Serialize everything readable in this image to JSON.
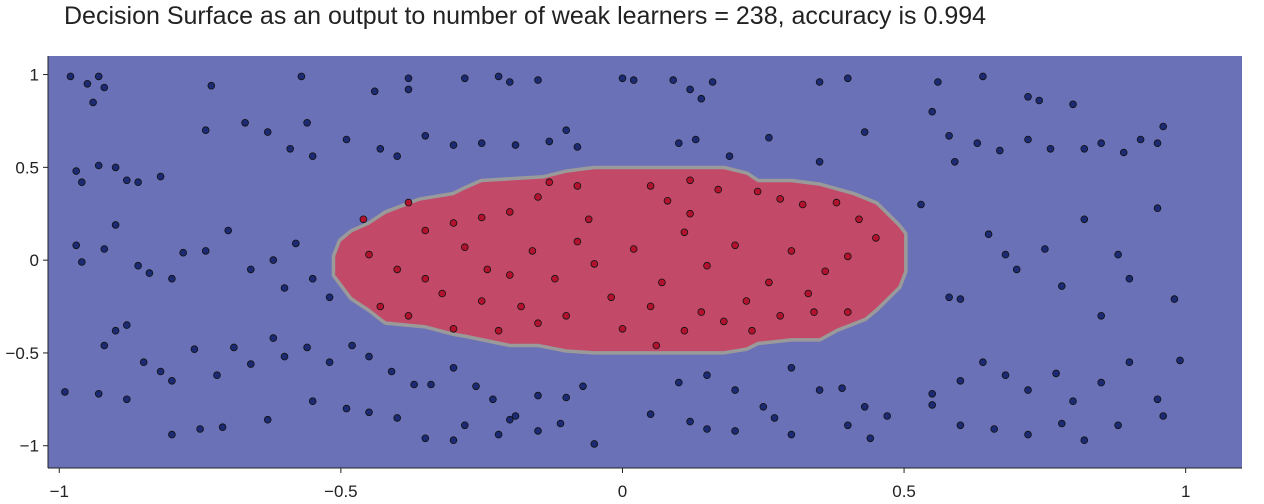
{
  "title": "Decision Surface as an output to number of weak learners = 238, accuracy is 0.994",
  "chart_data": {
    "type": "scatter",
    "title": "Decision Surface as an output to number of weak learners = 238, accuracy is 0.994",
    "xlabel": "",
    "ylabel": "",
    "xlim": [
      -1.02,
      1.1
    ],
    "ylim": [
      -1.12,
      1.1
    ],
    "xticks": [
      -1,
      -0.5,
      0,
      0.5,
      1
    ],
    "xtick_labels": [
      "−1",
      "−0.5",
      "0",
      "0.5",
      "1"
    ],
    "yticks": [
      -1,
      -0.5,
      0,
      0.5,
      1
    ],
    "ytick_labels": [
      "−1",
      "−0.5",
      "0",
      "0.5",
      "1"
    ],
    "grid": false,
    "colors": {
      "background": "#6b71b6",
      "inner_region": "#c24a68",
      "boundary": "#9a9a9a",
      "outer_points": "#1c2a73",
      "inner_points": "#b3122f",
      "point_edge": "#111111",
      "axis": "#222222"
    },
    "inner_region_polygon": [
      [
        -0.51,
        0.02
      ],
      [
        -0.5,
        0.1
      ],
      [
        -0.48,
        0.15
      ],
      [
        -0.45,
        0.19
      ],
      [
        -0.42,
        0.25
      ],
      [
        -0.36,
        0.32
      ],
      [
        -0.3,
        0.35
      ],
      [
        -0.28,
        0.38
      ],
      [
        -0.25,
        0.42
      ],
      [
        -0.14,
        0.44
      ],
      [
        -0.1,
        0.47
      ],
      [
        -0.05,
        0.49
      ],
      [
        0.18,
        0.49
      ],
      [
        0.22,
        0.46
      ],
      [
        0.24,
        0.42
      ],
      [
        0.3,
        0.42
      ],
      [
        0.35,
        0.4
      ],
      [
        0.41,
        0.35
      ],
      [
        0.45,
        0.3
      ],
      [
        0.46,
        0.27
      ],
      [
        0.49,
        0.18
      ],
      [
        0.5,
        0.14
      ],
      [
        0.5,
        -0.06
      ],
      [
        0.49,
        -0.14
      ],
      [
        0.47,
        -0.2
      ],
      [
        0.45,
        -0.26
      ],
      [
        0.43,
        -0.31
      ],
      [
        0.38,
        -0.37
      ],
      [
        0.35,
        -0.42
      ],
      [
        0.3,
        -0.42
      ],
      [
        0.24,
        -0.44
      ],
      [
        0.22,
        -0.47
      ],
      [
        0.18,
        -0.49
      ],
      [
        -0.05,
        -0.49
      ],
      [
        -0.1,
        -0.48
      ],
      [
        -0.15,
        -0.45
      ],
      [
        -0.2,
        -0.45
      ],
      [
        -0.28,
        -0.4
      ],
      [
        -0.3,
        -0.39
      ],
      [
        -0.35,
        -0.35
      ],
      [
        -0.42,
        -0.33
      ],
      [
        -0.45,
        -0.26
      ],
      [
        -0.48,
        -0.2
      ],
      [
        -0.5,
        -0.12
      ],
      [
        -0.51,
        -0.08
      ]
    ],
    "series": [
      {
        "class": "outer",
        "points": [
          [
            -0.98,
            0.99
          ],
          [
            -0.93,
            0.99
          ],
          [
            -0.95,
            0.95
          ],
          [
            -0.92,
            0.93
          ],
          [
            -0.94,
            0.85
          ],
          [
            -0.73,
            0.94
          ],
          [
            -0.57,
            0.99
          ],
          [
            -0.38,
            0.98
          ],
          [
            -0.38,
            0.92
          ],
          [
            -0.28,
            0.98
          ],
          [
            -0.22,
            0.99
          ],
          [
            -0.2,
            0.96
          ],
          [
            -0.15,
            0.97
          ],
          [
            0.0,
            0.98
          ],
          [
            0.02,
            0.97
          ],
          [
            0.09,
            0.97
          ],
          [
            0.12,
            0.92
          ],
          [
            0.16,
            0.96
          ],
          [
            0.14,
            0.87
          ],
          [
            0.35,
            0.96
          ],
          [
            0.4,
            0.98
          ],
          [
            0.56,
            0.96
          ],
          [
            0.64,
            0.99
          ],
          [
            0.72,
            0.88
          ],
          [
            0.74,
            0.86
          ],
          [
            0.8,
            0.84
          ],
          [
            0.96,
            0.72
          ],
          [
            -0.97,
            0.48
          ],
          [
            -0.96,
            0.42
          ],
          [
            -0.93,
            0.51
          ],
          [
            -0.9,
            0.5
          ],
          [
            -0.88,
            0.43
          ],
          [
            -0.86,
            0.42
          ],
          [
            -0.82,
            0.45
          ],
          [
            -0.74,
            0.7
          ],
          [
            -0.67,
            0.74
          ],
          [
            -0.63,
            0.69
          ],
          [
            -0.56,
            0.74
          ],
          [
            -0.59,
            0.6
          ],
          [
            -0.55,
            0.56
          ],
          [
            -0.49,
            0.65
          ],
          [
            -0.44,
            0.91
          ],
          [
            -0.43,
            0.6
          ],
          [
            -0.4,
            0.56
          ],
          [
            -0.35,
            0.67
          ],
          [
            -0.3,
            0.62
          ],
          [
            -0.25,
            0.63
          ],
          [
            -0.19,
            0.62
          ],
          [
            -0.13,
            0.64
          ],
          [
            -0.1,
            0.7
          ],
          [
            -0.08,
            0.61
          ],
          [
            0.1,
            0.63
          ],
          [
            0.13,
            0.65
          ],
          [
            0.19,
            0.56
          ],
          [
            0.26,
            0.66
          ],
          [
            0.35,
            0.53
          ],
          [
            0.43,
            0.69
          ],
          [
            0.55,
            0.8
          ],
          [
            0.58,
            0.67
          ],
          [
            0.59,
            0.53
          ],
          [
            0.63,
            0.63
          ],
          [
            0.67,
            0.59
          ],
          [
            0.72,
            0.65
          ],
          [
            0.76,
            0.6
          ],
          [
            0.82,
            0.6
          ],
          [
            0.85,
            0.63
          ],
          [
            0.89,
            0.58
          ],
          [
            0.92,
            0.65
          ],
          [
            0.95,
            0.63
          ],
          [
            -0.97,
            0.08
          ],
          [
            -0.96,
            -0.01
          ],
          [
            -0.92,
            0.06
          ],
          [
            -0.9,
            0.19
          ],
          [
            -0.86,
            -0.03
          ],
          [
            -0.84,
            -0.07
          ],
          [
            -0.8,
            -0.1
          ],
          [
            -0.78,
            0.04
          ],
          [
            -0.74,
            0.05
          ],
          [
            -0.7,
            0.16
          ],
          [
            -0.66,
            -0.05
          ],
          [
            -0.62,
            0.0
          ],
          [
            -0.58,
            0.09
          ],
          [
            -0.55,
            -0.1
          ],
          [
            -0.52,
            -0.2
          ],
          [
            -0.6,
            -0.15
          ],
          [
            0.53,
            0.3
          ],
          [
            0.58,
            -0.2
          ],
          [
            0.6,
            -0.21
          ],
          [
            0.65,
            0.14
          ],
          [
            0.68,
            0.03
          ],
          [
            0.7,
            -0.05
          ],
          [
            0.75,
            0.06
          ],
          [
            0.78,
            -0.14
          ],
          [
            0.82,
            0.22
          ],
          [
            0.85,
            -0.3
          ],
          [
            0.88,
            0.03
          ],
          [
            0.9,
            -0.1
          ],
          [
            0.95,
            0.28
          ],
          [
            0.98,
            -0.21
          ],
          [
            -0.92,
            -0.46
          ],
          [
            -0.9,
            -0.38
          ],
          [
            -0.88,
            -0.35
          ],
          [
            -0.85,
            -0.55
          ],
          [
            -0.82,
            -0.6
          ],
          [
            -0.8,
            -0.65
          ],
          [
            -0.76,
            -0.48
          ],
          [
            -0.72,
            -0.62
          ],
          [
            -0.69,
            -0.47
          ],
          [
            -0.66,
            -0.56
          ],
          [
            -0.62,
            -0.42
          ],
          [
            -0.6,
            -0.52
          ],
          [
            -0.56,
            -0.47
          ],
          [
            -0.52,
            -0.55
          ],
          [
            -0.48,
            -0.46
          ],
          [
            -0.45,
            -0.52
          ],
          [
            -0.41,
            -0.6
          ],
          [
            -0.37,
            -0.67
          ],
          [
            -0.34,
            -0.67
          ],
          [
            -0.3,
            -0.58
          ],
          [
            -0.26,
            -0.68
          ],
          [
            -0.23,
            -0.75
          ],
          [
            -0.19,
            -0.84
          ],
          [
            -0.15,
            -0.73
          ],
          [
            -0.1,
            -0.74
          ],
          [
            -0.07,
            -0.68
          ],
          [
            0.1,
            -0.66
          ],
          [
            0.15,
            -0.62
          ],
          [
            0.2,
            -0.7
          ],
          [
            0.25,
            -0.79
          ],
          [
            0.3,
            -0.58
          ],
          [
            0.35,
            -0.7
          ],
          [
            0.39,
            -0.69
          ],
          [
            0.43,
            -0.79
          ],
          [
            0.47,
            -0.84
          ],
          [
            0.55,
            -0.72
          ],
          [
            0.6,
            -0.65
          ],
          [
            0.64,
            -0.55
          ],
          [
            0.68,
            -0.62
          ],
          [
            0.72,
            -0.7
          ],
          [
            0.77,
            -0.61
          ],
          [
            0.8,
            -0.76
          ],
          [
            0.85,
            -0.66
          ],
          [
            0.9,
            -0.55
          ],
          [
            0.95,
            -0.75
          ],
          [
            0.99,
            -0.54
          ],
          [
            -0.99,
            -0.71
          ],
          [
            -0.93,
            -0.72
          ],
          [
            -0.88,
            -0.75
          ],
          [
            -0.8,
            -0.94
          ],
          [
            -0.75,
            -0.91
          ],
          [
            -0.71,
            -0.9
          ],
          [
            -0.63,
            -0.86
          ],
          [
            -0.55,
            -0.76
          ],
          [
            -0.49,
            -0.8
          ],
          [
            -0.45,
            -0.82
          ],
          [
            -0.4,
            -0.85
          ],
          [
            -0.35,
            -0.96
          ],
          [
            -0.3,
            -0.97
          ],
          [
            -0.28,
            -0.89
          ],
          [
            -0.22,
            -0.94
          ],
          [
            -0.2,
            -0.86
          ],
          [
            -0.15,
            -0.92
          ],
          [
            -0.11,
            -0.88
          ],
          [
            -0.05,
            -0.99
          ],
          [
            0.05,
            -0.83
          ],
          [
            0.12,
            -0.87
          ],
          [
            0.15,
            -0.91
          ],
          [
            0.2,
            -0.92
          ],
          [
            0.27,
            -0.85
          ],
          [
            0.3,
            -0.94
          ],
          [
            0.4,
            -0.89
          ],
          [
            0.44,
            -0.96
          ],
          [
            0.55,
            -0.78
          ],
          [
            0.6,
            -0.89
          ],
          [
            0.66,
            -0.91
          ],
          [
            0.72,
            -0.94
          ],
          [
            0.78,
            -0.88
          ],
          [
            0.82,
            -0.97
          ],
          [
            0.88,
            -0.89
          ],
          [
            0.96,
            -0.84
          ]
        ]
      },
      {
        "class": "inner",
        "points": [
          [
            -0.46,
            0.22
          ],
          [
            -0.38,
            0.31
          ],
          [
            -0.35,
            0.16
          ],
          [
            -0.3,
            0.2
          ],
          [
            -0.25,
            0.23
          ],
          [
            -0.2,
            0.26
          ],
          [
            -0.15,
            0.34
          ],
          [
            -0.13,
            0.42
          ],
          [
            -0.08,
            0.4
          ],
          [
            0.05,
            0.4
          ],
          [
            0.12,
            0.43
          ],
          [
            0.17,
            0.38
          ],
          [
            0.24,
            0.37
          ],
          [
            0.28,
            0.33
          ],
          [
            0.32,
            0.3
          ],
          [
            0.38,
            0.31
          ],
          [
            0.42,
            0.22
          ],
          [
            0.45,
            0.12
          ],
          [
            -0.45,
            0.03
          ],
          [
            -0.4,
            -0.05
          ],
          [
            -0.35,
            -0.1
          ],
          [
            -0.32,
            -0.18
          ],
          [
            -0.28,
            0.07
          ],
          [
            -0.24,
            -0.05
          ],
          [
            -0.2,
            -0.08
          ],
          [
            -0.16,
            0.05
          ],
          [
            -0.12,
            -0.1
          ],
          [
            -0.08,
            0.1
          ],
          [
            -0.05,
            -0.02
          ],
          [
            0.02,
            0.06
          ],
          [
            0.07,
            -0.12
          ],
          [
            0.11,
            0.15
          ],
          [
            0.15,
            -0.03
          ],
          [
            0.2,
            0.08
          ],
          [
            0.26,
            -0.12
          ],
          [
            0.3,
            0.05
          ],
          [
            0.36,
            -0.06
          ],
          [
            0.4,
            0.02
          ],
          [
            -0.43,
            -0.25
          ],
          [
            -0.38,
            -0.3
          ],
          [
            -0.3,
            -0.37
          ],
          [
            -0.22,
            -0.38
          ],
          [
            -0.15,
            -0.34
          ],
          [
            -0.1,
            -0.3
          ],
          [
            0.0,
            -0.37
          ],
          [
            0.06,
            -0.46
          ],
          [
            0.11,
            -0.38
          ],
          [
            0.18,
            -0.33
          ],
          [
            0.23,
            -0.38
          ],
          [
            0.28,
            -0.3
          ],
          [
            0.34,
            -0.28
          ],
          [
            0.4,
            -0.28
          ],
          [
            -0.25,
            -0.22
          ],
          [
            -0.18,
            -0.25
          ],
          [
            -0.02,
            -0.2
          ],
          [
            0.05,
            -0.25
          ],
          [
            0.14,
            -0.28
          ],
          [
            0.22,
            -0.22
          ],
          [
            0.33,
            -0.18
          ],
          [
            0.12,
            0.25
          ],
          [
            -0.06,
            0.22
          ],
          [
            0.08,
            0.32
          ]
        ]
      }
    ]
  }
}
